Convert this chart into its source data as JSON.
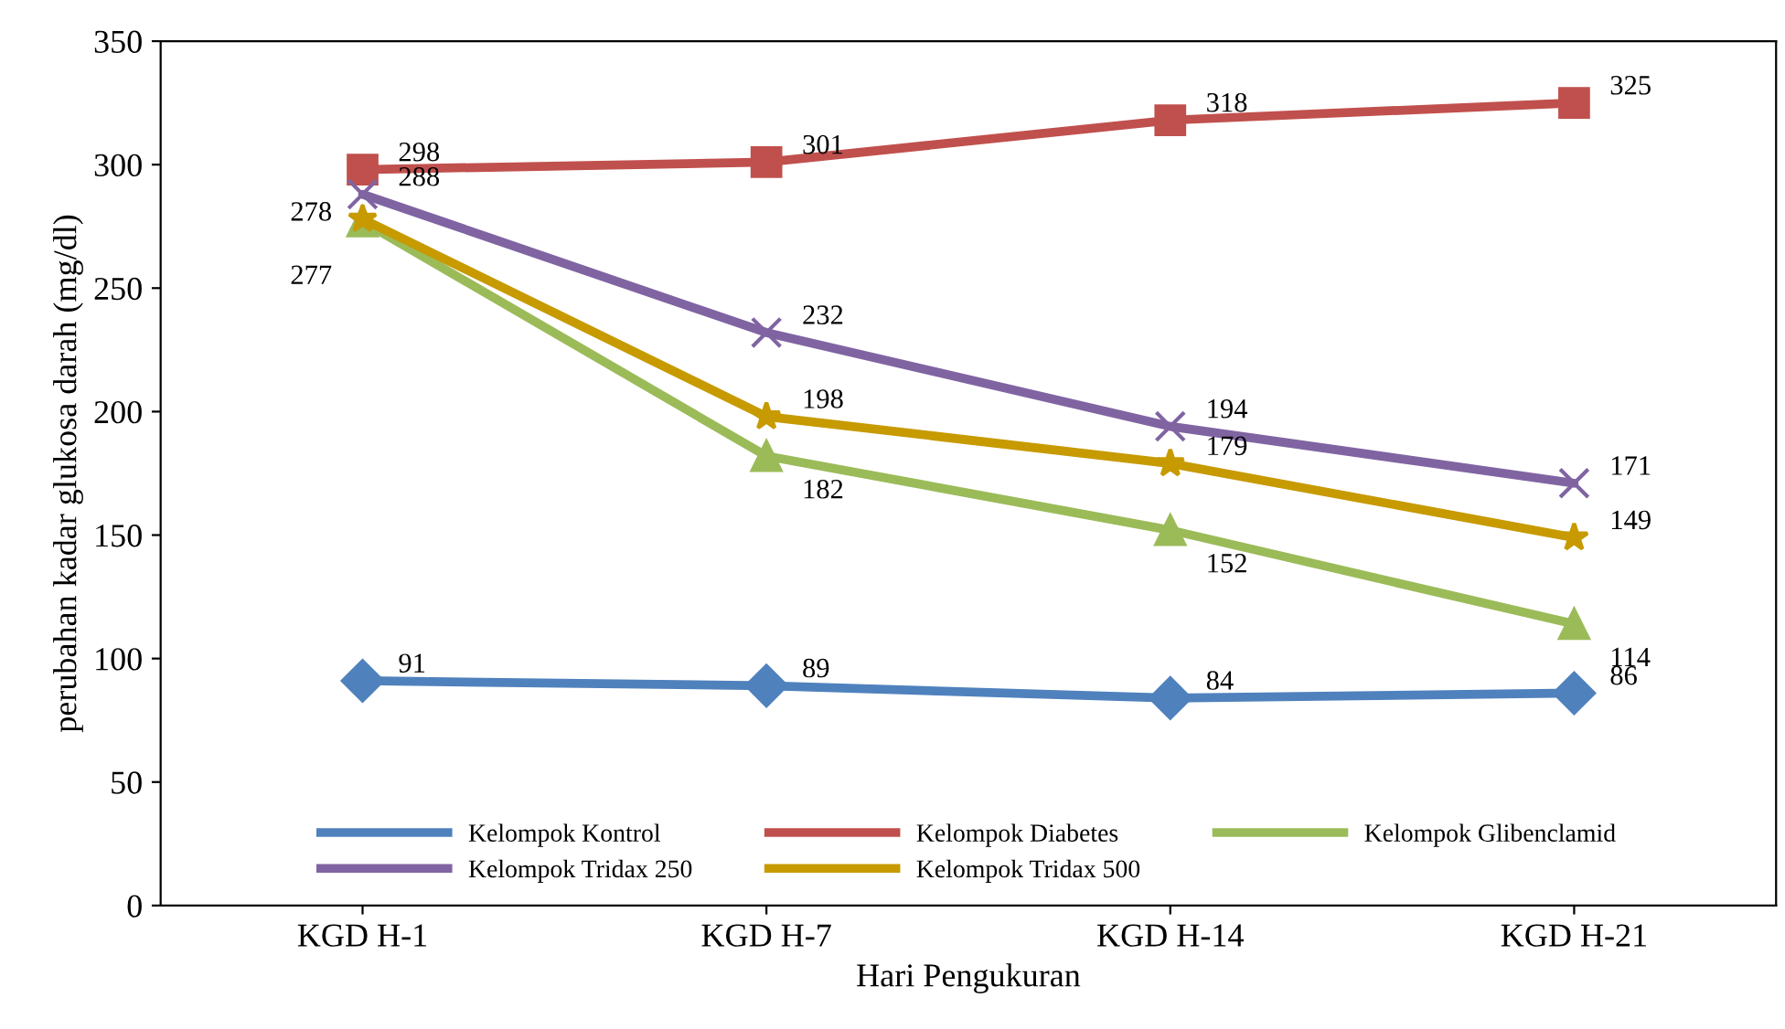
{
  "chart_data": {
    "type": "line",
    "xlabel": "Hari Pengukuran",
    "ylabel": "perubahan kadar glukosa darah (mg/dl)",
    "categories": [
      "KGD H-1",
      "KGD H-7",
      "KGD H-14",
      "KGD H-21"
    ],
    "series": [
      {
        "name": "Kelompok Kontrol",
        "color": "#4f81bd",
        "marker": "diamond",
        "values": [
          91,
          89,
          84,
          86
        ]
      },
      {
        "name": "Kelompok Diabetes",
        "color": "#c0504d",
        "marker": "square",
        "values": [
          298,
          301,
          318,
          325
        ]
      },
      {
        "name": "Kelompok Glibenclamid",
        "color": "#9bbb59",
        "marker": "triangle",
        "values": [
          277,
          182,
          152,
          114
        ]
      },
      {
        "name": "Kelompok Tridax 250",
        "color": "#8064a2",
        "marker": "cross",
        "values": [
          288,
          232,
          194,
          171
        ]
      },
      {
        "name": "Kelompok Tridax 500",
        "color": "#c79a00",
        "marker": "star",
        "values": [
          278,
          198,
          179,
          149
        ]
      }
    ],
    "ylim": [
      0,
      350
    ],
    "yticks": [
      0,
      50,
      100,
      150,
      200,
      250,
      300,
      350
    ],
    "grid": false,
    "legend": "bottom",
    "data_labels": true,
    "line_style": "solid"
  }
}
